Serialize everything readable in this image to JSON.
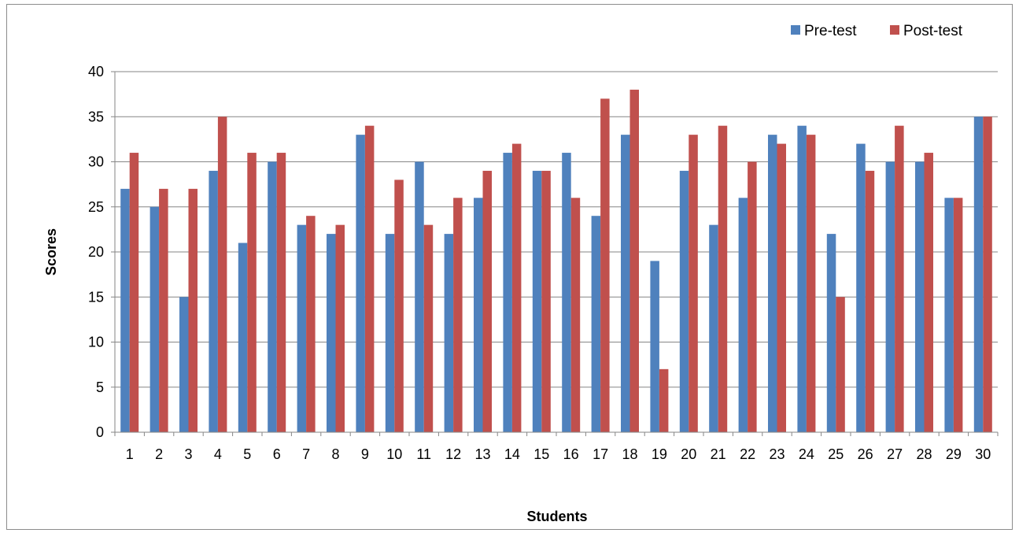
{
  "chart_data": {
    "type": "bar",
    "xlabel": "Students",
    "ylabel": "Scores",
    "ylim": [
      0,
      40
    ],
    "yticks": [
      0,
      5,
      10,
      15,
      20,
      25,
      30,
      35,
      40
    ],
    "grid": true,
    "legend_position": "top-right",
    "categories": [
      "1",
      "2",
      "3",
      "4",
      "5",
      "6",
      "7",
      "8",
      "9",
      "10",
      "11",
      "12",
      "13",
      "14",
      "15",
      "16",
      "17",
      "18",
      "19",
      "20",
      "21",
      "22",
      "23",
      "24",
      "25",
      "26",
      "27",
      "28",
      "29",
      "30"
    ],
    "series": [
      {
        "name": "Pre-test",
        "color": "#4f81bd",
        "values": [
          27,
          25,
          15,
          29,
          21,
          30,
          23,
          22,
          33,
          22,
          30,
          22,
          26,
          31,
          29,
          31,
          24,
          33,
          19,
          29,
          23,
          26,
          33,
          34,
          22,
          32,
          30,
          30,
          26,
          35
        ]
      },
      {
        "name": "Post-test",
        "color": "#c0504d",
        "values": [
          31,
          27,
          27,
          35,
          31,
          31,
          24,
          23,
          34,
          28,
          23,
          26,
          29,
          32,
          29,
          26,
          37,
          38,
          7,
          33,
          34,
          30,
          32,
          33,
          15,
          29,
          34,
          31,
          26,
          35
        ]
      }
    ]
  }
}
